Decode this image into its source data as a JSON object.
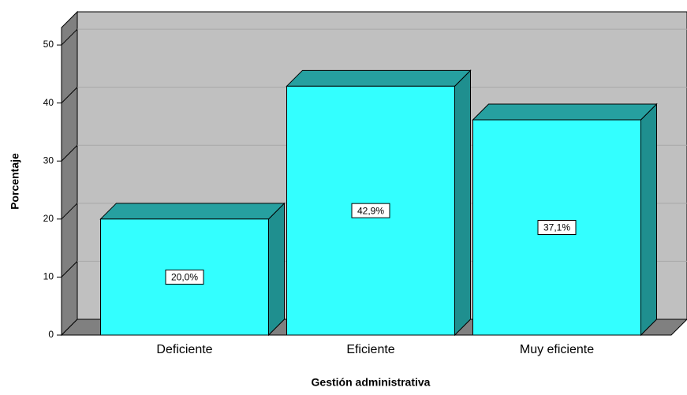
{
  "chart_data": {
    "type": "bar3d",
    "x_label": "Gestión administrativa",
    "y_label": "Porcentaje",
    "categories": [
      "Deficiente",
      "Eficiente",
      "Muy eficiente"
    ],
    "values": [
      20,
      42.9,
      37.1
    ],
    "value_labels": [
      "20,0%",
      "42,9%",
      "37,1%"
    ],
    "color": "#33ffff",
    "ylim": [
      0,
      53
    ],
    "yticks": [
      0,
      10,
      20,
      30,
      40,
      50
    ],
    "grid": true
  }
}
